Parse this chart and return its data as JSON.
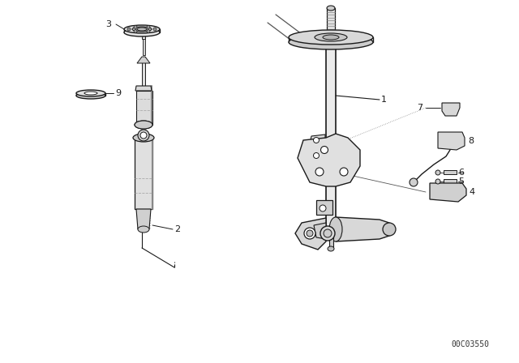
{
  "background_color": "#ffffff",
  "line_color": "#1a1a1a",
  "text_color": "#1a1a1a",
  "catalog_number": "00C03550",
  "fig_width": 6.4,
  "fig_height": 4.48,
  "dpi": 100
}
